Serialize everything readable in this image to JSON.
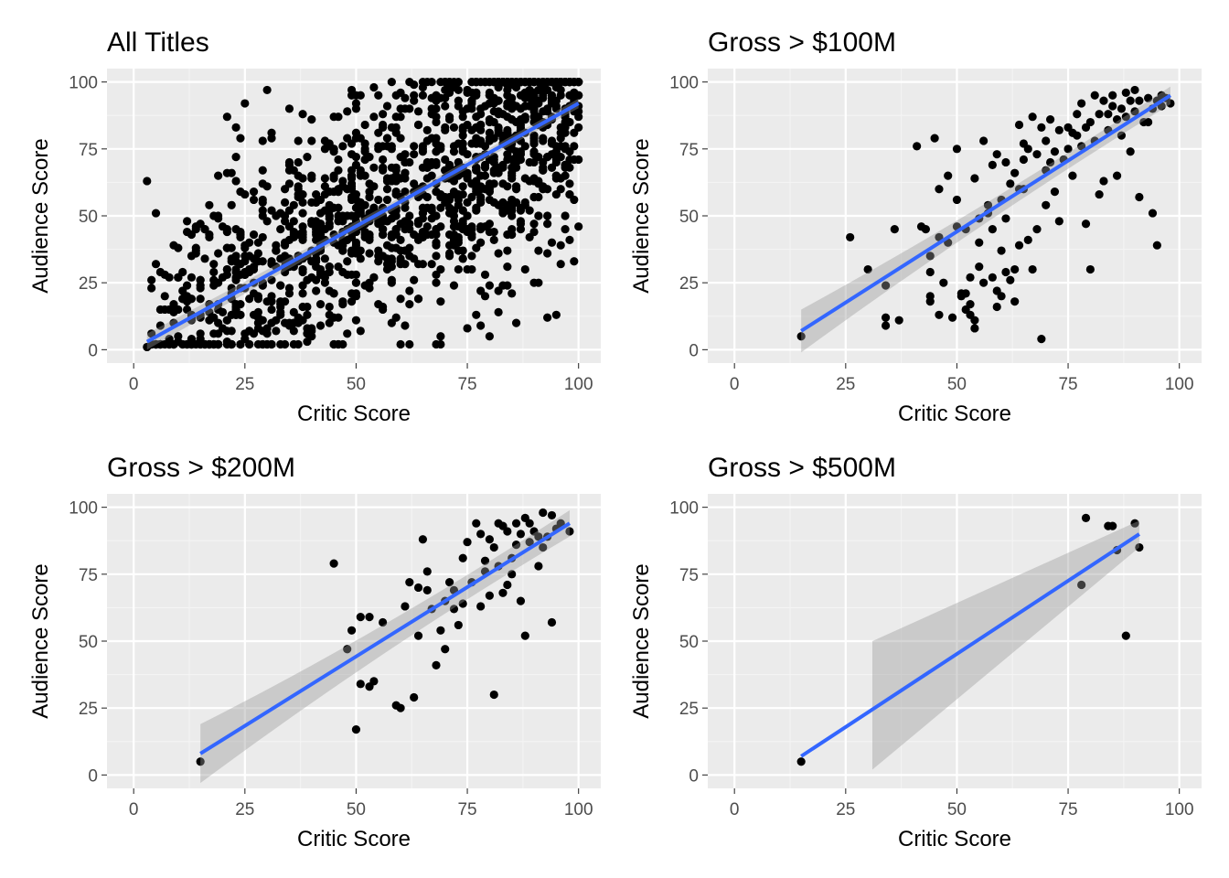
{
  "figure": {
    "colors": {
      "panel_background": "#ebebeb",
      "grid": "#ffffff",
      "points": "#000000",
      "fit_line": "#3366ff",
      "ci_band": "#999999"
    }
  },
  "chart_data": [
    {
      "type": "scatter",
      "title": "All Titles",
      "xlabel": "Critic Score",
      "ylabel": "Audience Score",
      "xlim": [
        -6,
        105
      ],
      "ylim": [
        -5,
        105
      ],
      "xticks": [
        0,
        25,
        50,
        75,
        100
      ],
      "yticks": [
        0,
        25,
        50,
        75,
        100
      ],
      "grid": true,
      "fit": {
        "x": [
          3,
          100
        ],
        "y": [
          3,
          92
        ],
        "ci_halfwidth": [
          3,
          1.6
        ]
      },
      "generated_points": {
        "count": 1400,
        "x_range": [
          3,
          100
        ],
        "slope": 0.92,
        "intercept": 0,
        "spread": 22,
        "y_range": [
          2,
          100
        ]
      },
      "points": [
        [
          3,
          1
        ],
        [
          10,
          5
        ],
        [
          10,
          38
        ],
        [
          14,
          38
        ],
        [
          23,
          83
        ],
        [
          24,
          79
        ],
        [
          25,
          92
        ],
        [
          22,
          66
        ],
        [
          29,
          78
        ],
        [
          24,
          59
        ],
        [
          99,
          33
        ],
        [
          82,
          14
        ],
        [
          95,
          13
        ],
        [
          93,
          12
        ],
        [
          80,
          5
        ],
        [
          69,
          5
        ],
        [
          75,
          8
        ],
        [
          86,
          10
        ],
        [
          45,
          2
        ],
        [
          40,
          5
        ],
        [
          15,
          6
        ],
        [
          20,
          8
        ],
        [
          30,
          6
        ],
        [
          35,
          10
        ],
        [
          50,
          90
        ],
        [
          55,
          95
        ],
        [
          60,
          96
        ],
        [
          65,
          98
        ],
        [
          70,
          97
        ],
        [
          38,
          88
        ]
      ]
    },
    {
      "type": "scatter",
      "title": "Gross > $100M",
      "xlabel": "Critic Score",
      "ylabel": "Audience Score",
      "xlim": [
        -6,
        105
      ],
      "ylim": [
        -5,
        105
      ],
      "xticks": [
        0,
        25,
        50,
        75,
        100
      ],
      "yticks": [
        0,
        25,
        50,
        75,
        100
      ],
      "grid": true,
      "fit": {
        "x": [
          15,
          98
        ],
        "y": [
          7,
          95
        ],
        "ci_halfwidth": [
          8,
          3
        ]
      },
      "points": [
        [
          15,
          5
        ],
        [
          26,
          42
        ],
        [
          30,
          30
        ],
        [
          34,
          24
        ],
        [
          34,
          12
        ],
        [
          34,
          9
        ],
        [
          36,
          45
        ],
        [
          37,
          11
        ],
        [
          41,
          76
        ],
        [
          42,
          46
        ],
        [
          43,
          45
        ],
        [
          44,
          29
        ],
        [
          44,
          20
        ],
        [
          44,
          18
        ],
        [
          45,
          79
        ],
        [
          46,
          13
        ],
        [
          46,
          42
        ],
        [
          47,
          25
        ],
        [
          48,
          65
        ],
        [
          49,
          12
        ],
        [
          50,
          56
        ],
        [
          50,
          46
        ],
        [
          51,
          21
        ],
        [
          51,
          20
        ],
        [
          52,
          21
        ],
        [
          52,
          15
        ],
        [
          53,
          17
        ],
        [
          53,
          13
        ],
        [
          53,
          27
        ],
        [
          54,
          11
        ],
        [
          54,
          8
        ],
        [
          55,
          40
        ],
        [
          55,
          49
        ],
        [
          55,
          31
        ],
        [
          56,
          25
        ],
        [
          57,
          51
        ],
        [
          57,
          54
        ],
        [
          58,
          45
        ],
        [
          58,
          27
        ],
        [
          59,
          22
        ],
        [
          59,
          16
        ],
        [
          60,
          37
        ],
        [
          60,
          20
        ],
        [
          61,
          29
        ],
        [
          61,
          49
        ],
        [
          62,
          26
        ],
        [
          63,
          30
        ],
        [
          63,
          18
        ],
        [
          64,
          60
        ],
        [
          64,
          39
        ],
        [
          65,
          60
        ],
        [
          65,
          71
        ],
        [
          66,
          41
        ],
        [
          67,
          30
        ],
        [
          68,
          45
        ],
        [
          69,
          4
        ],
        [
          70,
          54
        ],
        [
          70,
          78
        ],
        [
          71,
          70
        ],
        [
          72,
          59
        ],
        [
          73,
          48
        ],
        [
          74,
          71
        ],
        [
          75,
          83
        ],
        [
          76,
          81
        ],
        [
          77,
          80
        ],
        [
          78,
          92
        ],
        [
          79,
          47
        ],
        [
          80,
          30
        ],
        [
          81,
          95
        ],
        [
          82,
          88
        ],
        [
          83,
          63
        ],
        [
          84,
          82
        ],
        [
          85,
          91
        ],
        [
          86,
          65
        ],
        [
          87,
          80
        ],
        [
          88,
          96
        ],
        [
          89,
          74
        ],
        [
          90,
          89
        ],
        [
          91,
          57
        ],
        [
          92,
          85
        ],
        [
          93,
          94
        ],
        [
          94,
          51
        ],
        [
          95,
          39
        ],
        [
          98,
          92
        ],
        [
          96,
          95
        ],
        [
          90,
          97
        ],
        [
          82,
          58
        ],
        [
          80,
          85
        ],
        [
          78,
          76
        ],
        [
          76,
          65
        ],
        [
          72,
          74
        ],
        [
          70,
          67
        ],
        [
          68,
          73
        ],
        [
          66,
          75
        ],
        [
          64,
          84
        ],
        [
          62,
          62
        ],
        [
          60,
          56
        ],
        [
          58,
          69
        ],
        [
          56,
          78
        ],
        [
          54,
          64
        ],
        [
          52,
          45
        ],
        [
          50,
          75
        ],
        [
          48,
          40
        ],
        [
          46,
          60
        ],
        [
          44,
          35
        ],
        [
          85,
          95
        ],
        [
          87,
          90
        ],
        [
          89,
          93
        ],
        [
          91,
          93
        ],
        [
          93,
          85
        ],
        [
          94,
          90
        ],
        [
          95,
          93
        ],
        [
          96,
          91
        ],
        [
          97,
          94
        ],
        [
          88,
          87
        ],
        [
          86,
          86
        ],
        [
          84,
          88
        ],
        [
          83,
          93
        ],
        [
          81,
          78
        ],
        [
          79,
          83
        ],
        [
          77,
          88
        ],
        [
          75,
          75
        ],
        [
          73,
          82
        ],
        [
          71,
          86
        ],
        [
          69,
          83
        ],
        [
          67,
          87
        ],
        [
          65,
          77
        ],
        [
          63,
          66
        ],
        [
          61,
          70
        ],
        [
          59,
          73
        ]
      ]
    },
    {
      "type": "scatter",
      "title": "Gross > $200M",
      "xlabel": "Critic Score",
      "ylabel": "Audience Score",
      "xlim": [
        -6,
        105
      ],
      "ylim": [
        -5,
        105
      ],
      "xticks": [
        0,
        25,
        50,
        75,
        100
      ],
      "yticks": [
        0,
        25,
        50,
        75,
        100
      ],
      "grid": true,
      "fit": {
        "x": [
          15,
          98
        ],
        "y": [
          8,
          94
        ],
        "ci_halfwidth": [
          11,
          4.5
        ]
      },
      "points": [
        [
          15,
          5
        ],
        [
          45,
          79
        ],
        [
          48,
          47
        ],
        [
          49,
          54
        ],
        [
          50,
          17
        ],
        [
          51,
          59
        ],
        [
          51,
          34
        ],
        [
          53,
          59
        ],
        [
          53,
          33
        ],
        [
          54,
          35
        ],
        [
          56,
          57
        ],
        [
          59,
          26
        ],
        [
          60,
          25
        ],
        [
          61,
          63
        ],
        [
          62,
          72
        ],
        [
          63,
          29
        ],
        [
          64,
          52
        ],
        [
          64,
          70
        ],
        [
          65,
          88
        ],
        [
          66,
          76
        ],
        [
          66,
          69
        ],
        [
          67,
          62
        ],
        [
          68,
          41
        ],
        [
          69,
          54
        ],
        [
          70,
          65
        ],
        [
          70,
          47
        ],
        [
          71,
          72
        ],
        [
          72,
          62
        ],
        [
          72,
          69
        ],
        [
          73,
          56
        ],
        [
          74,
          81
        ],
        [
          74,
          64
        ],
        [
          75,
          87
        ],
        [
          76,
          72
        ],
        [
          77,
          94
        ],
        [
          78,
          63
        ],
        [
          78,
          90
        ],
        [
          79,
          80
        ],
        [
          80,
          67
        ],
        [
          81,
          30
        ],
        [
          81,
          85
        ],
        [
          82,
          78
        ],
        [
          82,
          94
        ],
        [
          83,
          68
        ],
        [
          84,
          91
        ],
        [
          84,
          71
        ],
        [
          85,
          81
        ],
        [
          86,
          86
        ],
        [
          86,
          94
        ],
        [
          87,
          90
        ],
        [
          88,
          52
        ],
        [
          88,
          96
        ],
        [
          89,
          87
        ],
        [
          90,
          91
        ],
        [
          91,
          78
        ],
        [
          92,
          98
        ],
        [
          92,
          85
        ],
        [
          93,
          89
        ],
        [
          94,
          57
        ],
        [
          94,
          97
        ],
        [
          98,
          91
        ],
        [
          79,
          76
        ],
        [
          83,
          93
        ],
        [
          85,
          75
        ],
        [
          87,
          65
        ],
        [
          89,
          94
        ],
        [
          91,
          89
        ],
        [
          95,
          92
        ],
        [
          96,
          94
        ],
        [
          80,
          88
        ]
      ]
    },
    {
      "type": "scatter",
      "title": "Gross > $500M",
      "xlabel": "Critic Score",
      "ylabel": "Audience Score",
      "xlim": [
        -6,
        105
      ],
      "ylim": [
        -5,
        105
      ],
      "xticks": [
        0,
        25,
        50,
        75,
        100
      ],
      "yticks": [
        0,
        25,
        50,
        75,
        100
      ],
      "grid": true,
      "fit": {
        "x": [
          15,
          91
        ],
        "y": [
          7,
          90
        ],
        "ci_start_x": 31,
        "ci_band": [
          [
            31,
            50,
            2
          ],
          [
            91,
            95,
            85
          ]
        ]
      },
      "points": [
        [
          15,
          5
        ],
        [
          78,
          71
        ],
        [
          79,
          96
        ],
        [
          84,
          93
        ],
        [
          85,
          93
        ],
        [
          86,
          84
        ],
        [
          88,
          52
        ],
        [
          90,
          94
        ],
        [
          91,
          85
        ]
      ]
    }
  ]
}
